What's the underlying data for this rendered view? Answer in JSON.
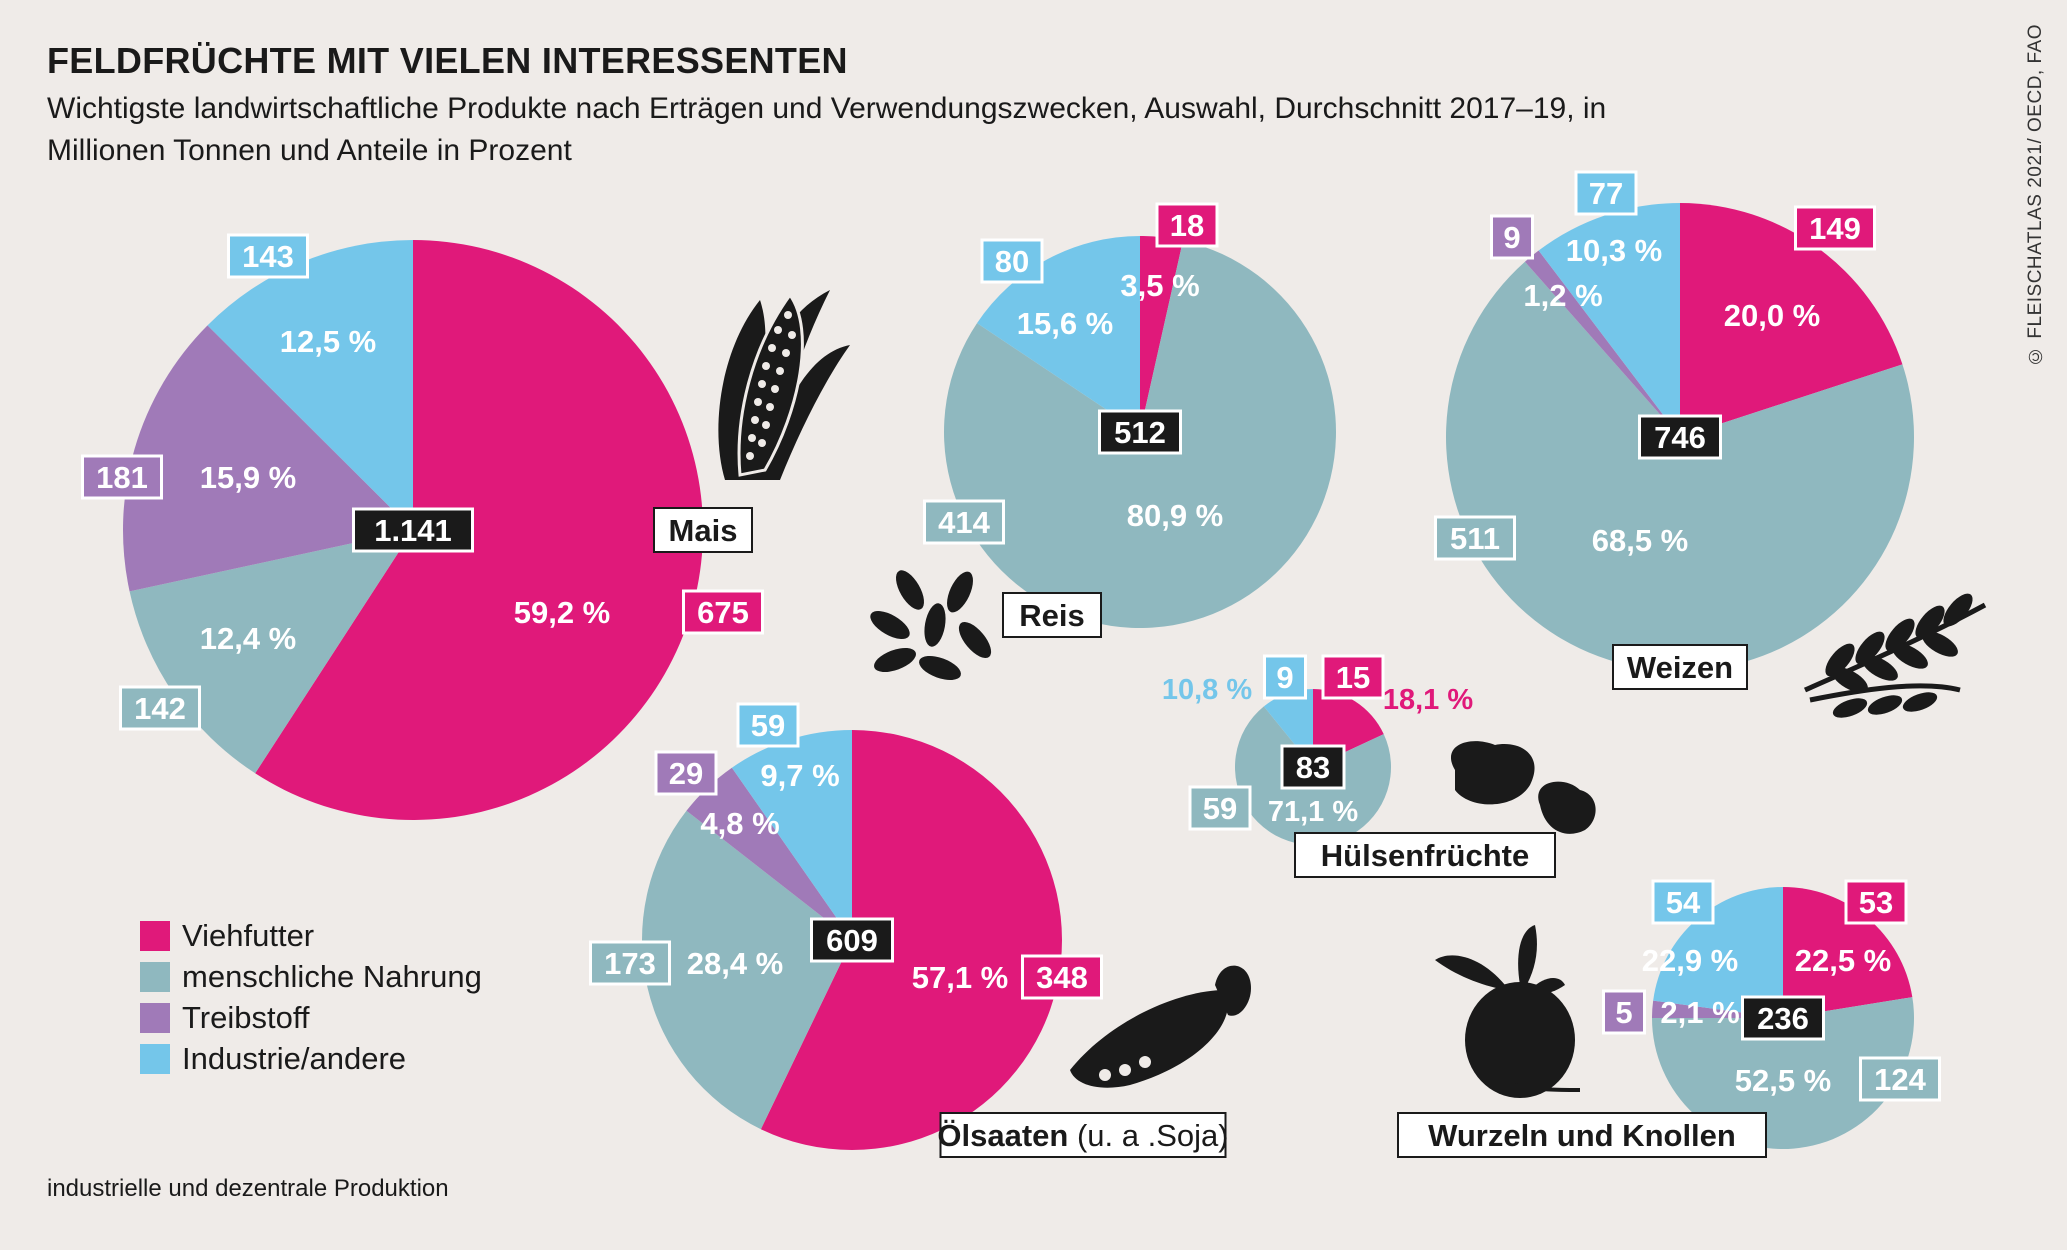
{
  "title": "FELDFRÜCHTE MIT VIELEN INTERESSENTEN",
  "subtitle": "Wichtigste landwirtschaftliche Produkte nach Erträgen und Verwendungszwecken, Auswahl, Durchschnitt 2017–19, in Millionen Tonnen und Anteile in Prozent",
  "footnote": "industrielle und dezentrale Produktion",
  "source": "© FLEISCHATLAS 2021/ OECD, FAO",
  "colors": {
    "viehfutter": "#e0197a",
    "nahrung": "#8fb8bf",
    "treibstoff": "#a07ab8",
    "industrie": "#74c6ea",
    "background": "#efebe8"
  },
  "legend": [
    {
      "label": "Viehfutter",
      "color": "#e0197a"
    },
    {
      "label": "menschliche Nahrung",
      "color": "#8fb8bf"
    },
    {
      "label": "Treibstoff",
      "color": "#a07ab8"
    },
    {
      "label": "Industrie/andere",
      "color": "#74c6ea"
    }
  ],
  "icons": [
    "corn-icon",
    "rice-icon",
    "wheat-icon",
    "beans-icon",
    "pea-pod-icon",
    "beet-icon"
  ],
  "chart_data": {
    "type": "pie",
    "unit": "Millionen Tonnen",
    "charts": [
      {
        "name": "Mais",
        "total": "1.141",
        "slices": [
          {
            "category": "Viehfutter",
            "value": 675,
            "percent": "59,2 %"
          },
          {
            "category": "menschliche Nahrung",
            "value": 142,
            "percent": "12,4 %"
          },
          {
            "category": "Treibstoff",
            "value": 181,
            "percent": "15,9 %"
          },
          {
            "category": "Industrie/andere",
            "value": 143,
            "percent": "12,5 %"
          }
        ]
      },
      {
        "name": "Reis",
        "total": "512",
        "slices": [
          {
            "category": "Viehfutter",
            "value": 18,
            "percent": "3,5 %"
          },
          {
            "category": "menschliche Nahrung",
            "value": 414,
            "percent": "80,9 %"
          },
          {
            "category": "Industrie/andere",
            "value": 80,
            "percent": "15,6 %"
          }
        ]
      },
      {
        "name": "Weizen",
        "total": "746",
        "slices": [
          {
            "category": "Viehfutter",
            "value": 149,
            "percent": "20,0 %"
          },
          {
            "category": "menschliche Nahrung",
            "value": 511,
            "percent": "68,5 %"
          },
          {
            "category": "Treibstoff",
            "value": 9,
            "percent": "1,2 %"
          },
          {
            "category": "Industrie/andere",
            "value": 77,
            "percent": "10,3 %"
          }
        ]
      },
      {
        "name": "Hülsenfrüchte",
        "total": "83",
        "slices": [
          {
            "category": "Viehfutter",
            "value": 15,
            "percent": "18,1 %"
          },
          {
            "category": "menschliche Nahrung",
            "value": 59,
            "percent": "71,1 %"
          },
          {
            "category": "Industrie/andere",
            "value": 9,
            "percent": "10,8 %"
          }
        ]
      },
      {
        "name": "Ölsaaten",
        "name_suffix": "(u. a .Soja)",
        "total": "609",
        "slices": [
          {
            "category": "Viehfutter",
            "value": 348,
            "percent": "57,1 %"
          },
          {
            "category": "menschliche Nahrung",
            "value": 173,
            "percent": "28,4 %"
          },
          {
            "category": "Treibstoff",
            "value": 29,
            "percent": "4,8 %"
          },
          {
            "category": "Industrie/andere",
            "value": 59,
            "percent": "9,7 %"
          }
        ]
      },
      {
        "name": "Wurzeln und Knollen",
        "total": "236",
        "slices": [
          {
            "category": "Viehfutter",
            "value": 53,
            "percent": "22,5 %"
          },
          {
            "category": "menschliche Nahrung",
            "value": 124,
            "percent": "52,5 %"
          },
          {
            "category": "Treibstoff",
            "value": 5,
            "percent": "2,1 %"
          },
          {
            "category": "Industrie/andere",
            "value": 54,
            "percent": "22,9 %"
          }
        ]
      }
    ]
  }
}
